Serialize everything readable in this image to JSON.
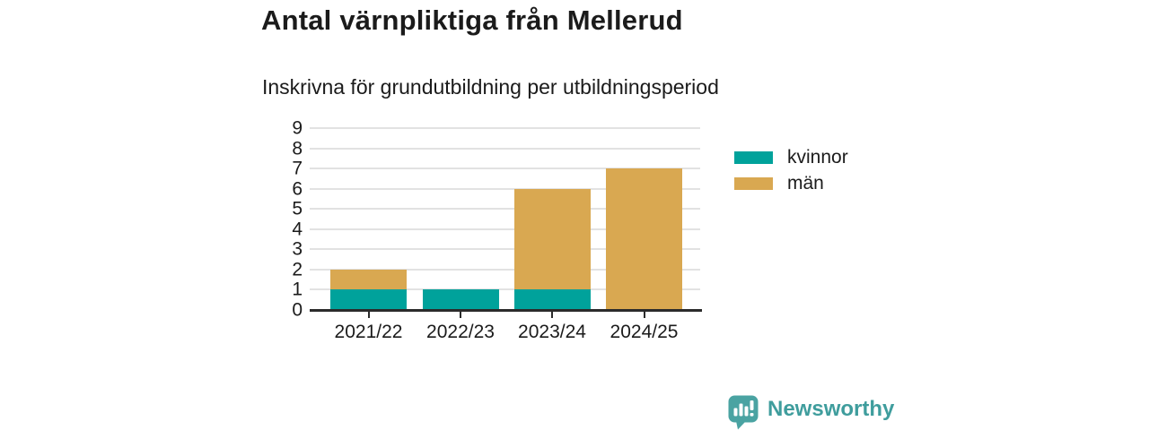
{
  "chart_data": {
    "type": "bar",
    "stacked": true,
    "title": "Antal värnpliktiga från Mellerud",
    "subtitle": "Inskrivna för grundutbildning per utbildningsperiod",
    "categories": [
      "2021/22",
      "2022/23",
      "2023/24",
      "2024/25"
    ],
    "series": [
      {
        "name": "kvinnor",
        "color": "#00a29b",
        "values": [
          1,
          1,
          1,
          0
        ]
      },
      {
        "name": "män",
        "color": "#d9a851",
        "values": [
          1,
          0,
          5,
          7
        ]
      }
    ],
    "totals": [
      2,
      1,
      6,
      7
    ],
    "xlabel": "",
    "ylabel": "",
    "ylim": [
      0,
      9
    ],
    "yticks": [
      0,
      1,
      2,
      3,
      4,
      5,
      6,
      7,
      8,
      9
    ],
    "grid": true,
    "legend_position": "right"
  },
  "legend": {
    "items": [
      {
        "label": "kvinnor",
        "color": "#00a29b"
      },
      {
        "label": "män",
        "color": "#d9a851"
      }
    ]
  },
  "branding": {
    "logo_text": "Newsworthy",
    "brand_color": "#3f9d9d",
    "icon": "bar-chart-speech-bubble"
  },
  "colors": {
    "kvinnor": "#00a29b",
    "man": "#d9a851",
    "grid": "#e2e2e2",
    "axis": "#2b2b2b",
    "text": "#1b1b1b"
  }
}
